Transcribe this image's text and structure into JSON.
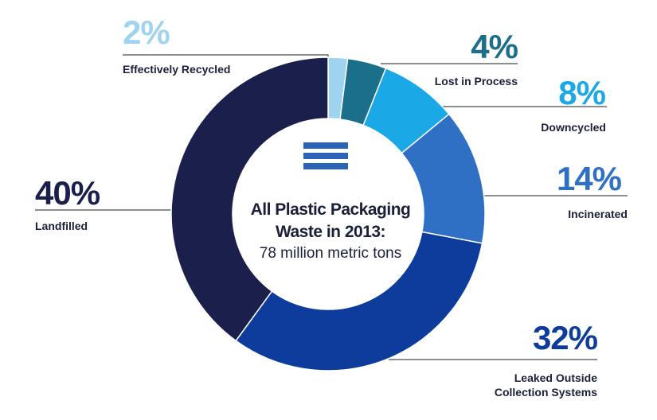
{
  "center": {
    "title_line1": "All Plastic Packaging",
    "title_line2": "Waste in 2013:",
    "subtitle": "78 million metric tons",
    "icon": "equals-icon"
  },
  "colors": {
    "effectively_recycled": "#9fd3f0",
    "lost_in_process": "#1c6f8a",
    "downcycled": "#1aa9e6",
    "incinerated": "#2f6fc4",
    "leaked": "#0e3c9c",
    "landfilled": "#1b1f4b",
    "leader_line": "#4a4a4a",
    "icon": "#2a63b8"
  },
  "chart_data": {
    "type": "pie",
    "donut": true,
    "slices": [
      {
        "label": "Effectively Recycled",
        "value": 2,
        "display": "2%",
        "label_lines": [
          "Effectively Recycled"
        ],
        "color": "#9fd3f0"
      },
      {
        "label": "Lost in Process",
        "value": 4,
        "display": "4%",
        "label_lines": [
          "Lost in Process"
        ],
        "color": "#1c6f8a"
      },
      {
        "label": "Downcycled",
        "value": 8,
        "display": "8%",
        "label_lines": [
          "Downcycled"
        ],
        "color": "#1aa9e6"
      },
      {
        "label": "Incinerated",
        "value": 14,
        "display": "14%",
        "label_lines": [
          "Incinerated"
        ],
        "color": "#2f6fc4"
      },
      {
        "label": "Leaked Outside Collection Systems",
        "value": 32,
        "display": "32%",
        "label_lines": [
          "Leaked Outside",
          "Collection Systems"
        ],
        "color": "#0e3c9c"
      },
      {
        "label": "Landfilled",
        "value": 40,
        "display": "40%",
        "label_lines": [
          "Landfilled"
        ],
        "color": "#1b1f4b"
      }
    ]
  }
}
